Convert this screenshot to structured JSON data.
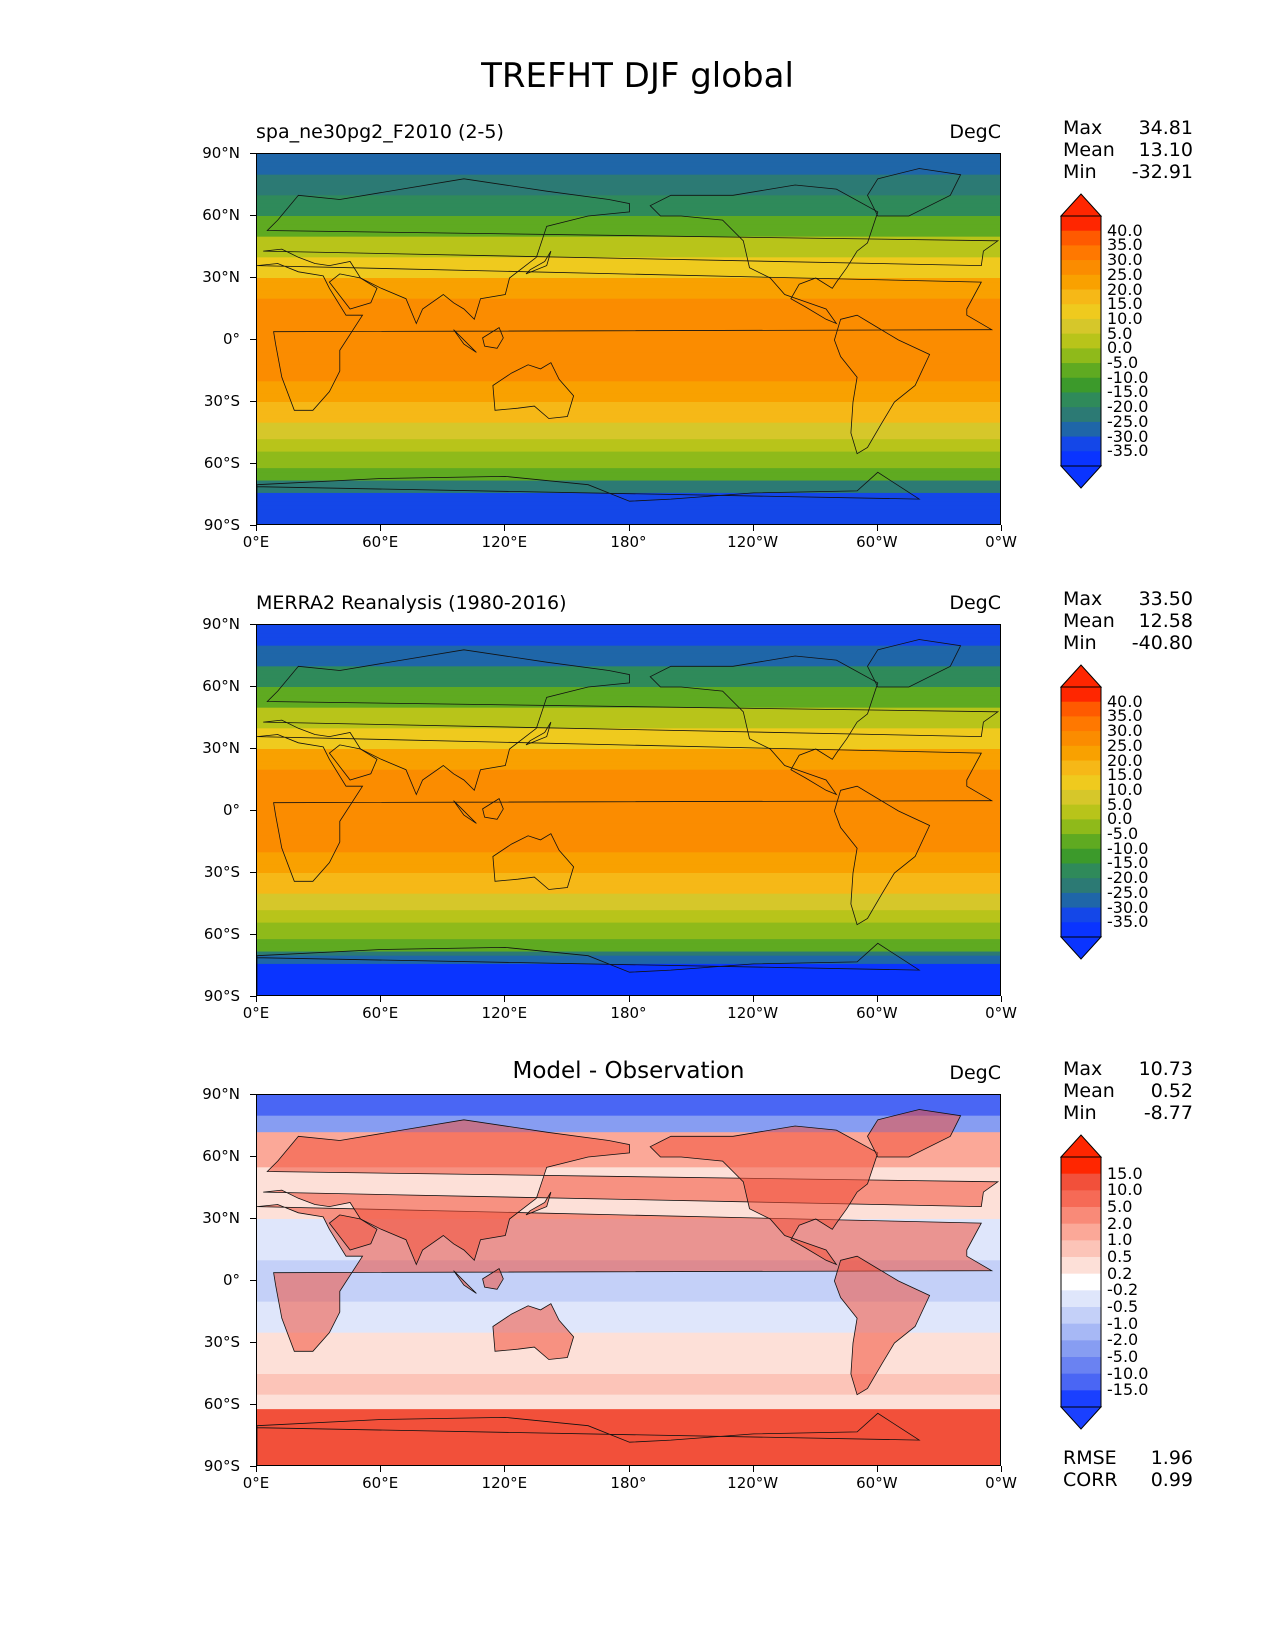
{
  "title": "TREFHT DJF global",
  "x_ticks": [
    "0°E",
    "60°E",
    "120°E",
    "180°",
    "120°W",
    "60°W",
    "0°W"
  ],
  "y_ticks": [
    "90°N",
    "60°N",
    "30°N",
    "0°",
    "30°S",
    "60°S",
    "90°S"
  ],
  "panels": [
    {
      "title": "spa_ne30pg2_F2010 (2-5)",
      "units": "DegC",
      "stats": {
        "max_label": "Max",
        "max": "34.81",
        "mean_label": "Mean",
        "mean": "13.10",
        "min_label": "Min",
        "min": "-32.91"
      },
      "colorbar": {
        "labels": [
          "40.0",
          "35.0",
          "30.0",
          "25.0",
          "20.0",
          "15.0",
          "10.0",
          "5.0",
          "0.0",
          "-5.0",
          "-10.0",
          "-15.0",
          "-20.0",
          "-25.0",
          "-30.0",
          "-35.0"
        ],
        "colors": [
          "#ff2600",
          "#ff5a00",
          "#ff7800",
          "#fb8c00",
          "#f9a100",
          "#f6b817",
          "#efca1e",
          "#d6c72a",
          "#b8c41a",
          "#8fba1a",
          "#5faa21",
          "#3c9a2b",
          "#2f8a5a",
          "#2c7a74",
          "#1f66a8",
          "#1447e8",
          "#0a34ff"
        ],
        "over_color": "#ff2600",
        "under_color": "#0a34ff"
      }
    },
    {
      "title": "MERRA2 Reanalysis (1980-2016)",
      "units": "DegC",
      "stats": {
        "max_label": "Max",
        "max": "33.50",
        "mean_label": "Mean",
        "mean": "12.58",
        "min_label": "Min",
        "min": "-40.80"
      },
      "colorbar": {
        "labels": [
          "40.0",
          "35.0",
          "30.0",
          "25.0",
          "20.0",
          "15.0",
          "10.0",
          "5.0",
          "0.0",
          "-5.0",
          "-10.0",
          "-15.0",
          "-20.0",
          "-25.0",
          "-30.0",
          "-35.0"
        ],
        "colors": [
          "#ff2600",
          "#ff5a00",
          "#ff7800",
          "#fb8c00",
          "#f9a100",
          "#f6b817",
          "#efca1e",
          "#d6c72a",
          "#b8c41a",
          "#8fba1a",
          "#5faa21",
          "#3c9a2b",
          "#2f8a5a",
          "#2c7a74",
          "#1f66a8",
          "#1447e8",
          "#0a34ff"
        ],
        "over_color": "#ff2600",
        "under_color": "#0a34ff"
      }
    },
    {
      "title": "Model - Observation",
      "units": "DegC",
      "stats": {
        "max_label": "Max",
        "max": "10.73",
        "mean_label": "Mean",
        "mean": "0.52",
        "min_label": "Min",
        "min": "-8.77"
      },
      "colorbar": {
        "labels": [
          "15.0",
          "10.0",
          "5.0",
          "2.0",
          "1.0",
          "0.5",
          "0.2",
          "-0.2",
          "-0.5",
          "-1.0",
          "-2.0",
          "-5.0",
          "-10.0",
          "-15.0"
        ],
        "colors": [
          "#ff2600",
          "#f2503a",
          "#f66a56",
          "#f98a78",
          "#fba898",
          "#fcc4b8",
          "#fde0d8",
          "#ffffff",
          "#dfe6fb",
          "#c4d0f8",
          "#a7b8f5",
          "#879df2",
          "#6a82f2",
          "#4a66f4",
          "#1a40ff"
        ],
        "over_color": "#ff2600",
        "under_color": "#1a40ff"
      },
      "extra_stats": {
        "rmse_label": "RMSE",
        "rmse": "1.96",
        "corr_label": "CORR",
        "corr": "0.99"
      }
    }
  ]
}
